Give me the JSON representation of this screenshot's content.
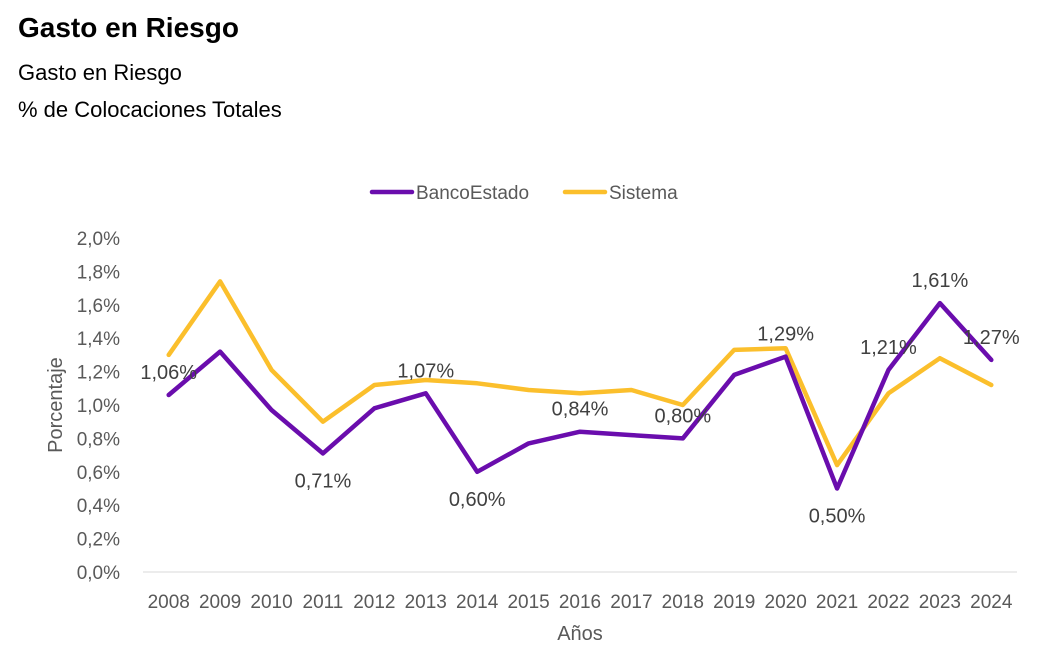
{
  "header": {
    "title": "Gasto en Riesgo",
    "subtitle": "Gasto en Riesgo",
    "subtitle2": "% de Colocaciones Totales"
  },
  "chart_data": {
    "type": "line",
    "title": "Gasto en Riesgo",
    "xlabel": "Años",
    "ylabel": "Porcentaje",
    "ylim": [
      0,
      2.0
    ],
    "y_ticks": [
      "0,0%",
      "0,2%",
      "0,4%",
      "0,6%",
      "0,8%",
      "1,0%",
      "1,2%",
      "1,4%",
      "1,6%",
      "1,8%",
      "2,0%"
    ],
    "categories": [
      "2008",
      "2009",
      "2010",
      "2011",
      "2012",
      "2013",
      "2014",
      "2015",
      "2016",
      "2017",
      "2018",
      "2019",
      "2020",
      "2021",
      "2022",
      "2023",
      "2024"
    ],
    "legend_position": "top",
    "series": [
      {
        "name": "BancoEstado",
        "color": "#6a0dad",
        "values": [
          1.06,
          1.32,
          0.97,
          0.71,
          0.98,
          1.07,
          0.6,
          0.77,
          0.84,
          0.82,
          0.8,
          1.18,
          1.29,
          0.5,
          1.21,
          1.61,
          1.27
        ]
      },
      {
        "name": "Sistema",
        "color": "#fbbf2c",
        "values": [
          1.3,
          1.74,
          1.21,
          0.9,
          1.12,
          1.15,
          1.13,
          1.09,
          1.07,
          1.09,
          1.0,
          1.33,
          1.34,
          0.64,
          1.07,
          1.28,
          1.12
        ]
      }
    ],
    "data_labels": [
      {
        "series": "BancoEstado",
        "category": "2008",
        "text": "1,06%",
        "position": "above"
      },
      {
        "series": "BancoEstado",
        "category": "2011",
        "text": "0,71%",
        "position": "below"
      },
      {
        "series": "BancoEstado",
        "category": "2013",
        "text": "1,07%",
        "position": "above"
      },
      {
        "series": "BancoEstado",
        "category": "2014",
        "text": "0,60%",
        "position": "below"
      },
      {
        "series": "BancoEstado",
        "category": "2016",
        "text": "0,84%",
        "position": "above"
      },
      {
        "series": "BancoEstado",
        "category": "2018",
        "text": "0,80%",
        "position": "above"
      },
      {
        "series": "BancoEstado",
        "category": "2020",
        "text": "1,29%",
        "position": "above"
      },
      {
        "series": "BancoEstado",
        "category": "2021",
        "text": "0,50%",
        "position": "below"
      },
      {
        "series": "BancoEstado",
        "category": "2022",
        "text": "1,21%",
        "position": "above"
      },
      {
        "series": "BancoEstado",
        "category": "2023",
        "text": "1,61%",
        "position": "above"
      },
      {
        "series": "BancoEstado",
        "category": "2024",
        "text": "1,27%",
        "position": "above"
      }
    ]
  }
}
